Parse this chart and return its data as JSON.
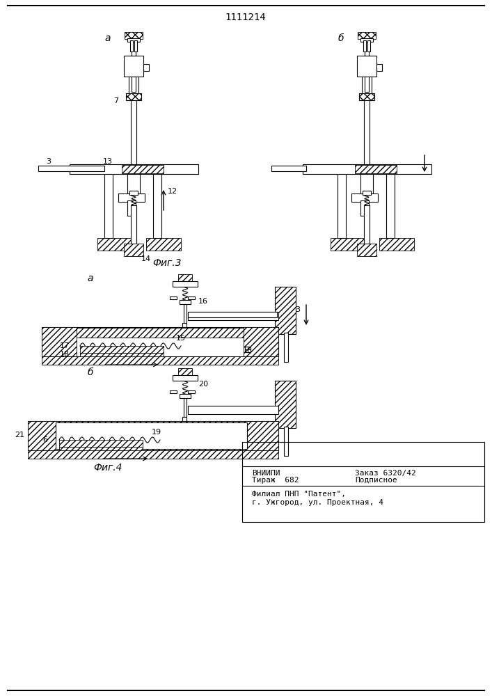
{
  "patent_number": "1111214",
  "fig3_label": "Фиг.3",
  "fig4_label": "Фиг.4",
  "sub_a": "а",
  "sub_b": "б",
  "footer_line1_left": "ВНИИПИ",
  "footer_line1_right": "Заказ 6320/42",
  "footer_line2_left": "Тираж  682",
  "footer_line2_right": "Подписное",
  "footer_line3": "Филиал ПНП \"Патент\",",
  "footer_line4": "г. Ужгород, ул. Проектная, 4",
  "bg_color": "#ffffff",
  "line_color": "#000000"
}
